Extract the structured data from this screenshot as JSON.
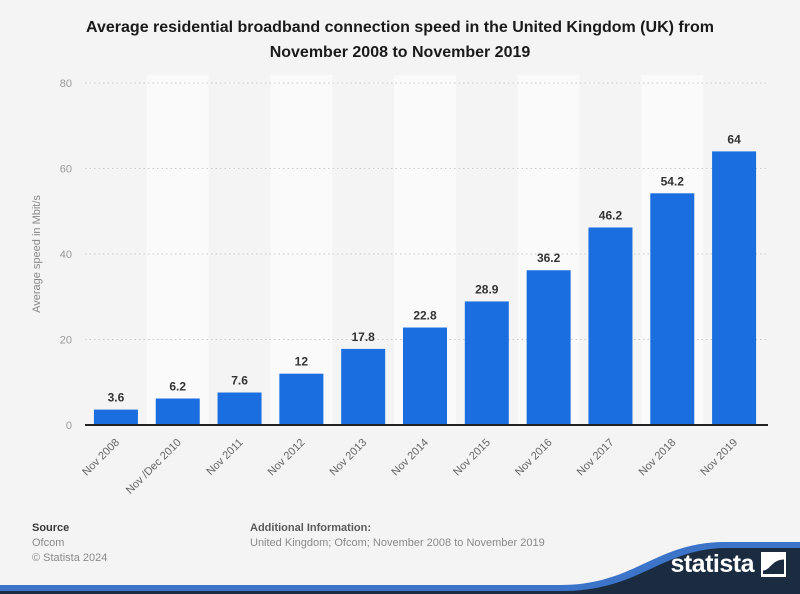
{
  "header": {
    "line1": "Average residential broadband connection speed in the United Kingdom (UK) from",
    "line2": "November 2008 to November 2019"
  },
  "chart_data": {
    "type": "bar",
    "title": "Average residential broadband connection speed in the United Kingdom (UK) from November 2008 to November 2019",
    "categories": [
      "Nov 2008",
      "Nov /Dec 2010",
      "Nov 2011",
      "Nov 2012",
      "Nov 2013",
      "Nov 2014",
      "Nov 2015",
      "Nov 2016",
      "Nov 2017",
      "Nov 2018",
      "Nov 2019"
    ],
    "values": [
      3.6,
      6.2,
      7.6,
      12,
      17.8,
      22.8,
      28.9,
      36.2,
      46.2,
      54.2,
      64
    ],
    "xlabel": "",
    "ylabel": "Average speed in Mbit/s",
    "yticks": [
      0,
      20,
      40,
      60,
      80
    ],
    "ylim": [
      0,
      80
    ],
    "grid": "horizontal-dotted",
    "legend": "none",
    "bar_color": "#1a6ee0",
    "value_label_color": "#333333",
    "axis_color": "#222222",
    "tick_label_color": "#999999",
    "x_label_color": "#666666"
  },
  "footer": {
    "source_label": "Source",
    "source_value": "Ofcom",
    "copyright": "© Statista 2024",
    "additional_label": "Additional Information:",
    "additional_value": "United Kingdom; Ofcom; November 2008 to November 2019"
  },
  "branding": {
    "logo_text": "statista",
    "navy": "#1b2b40",
    "swoosh_blue": "#3b74c8"
  }
}
